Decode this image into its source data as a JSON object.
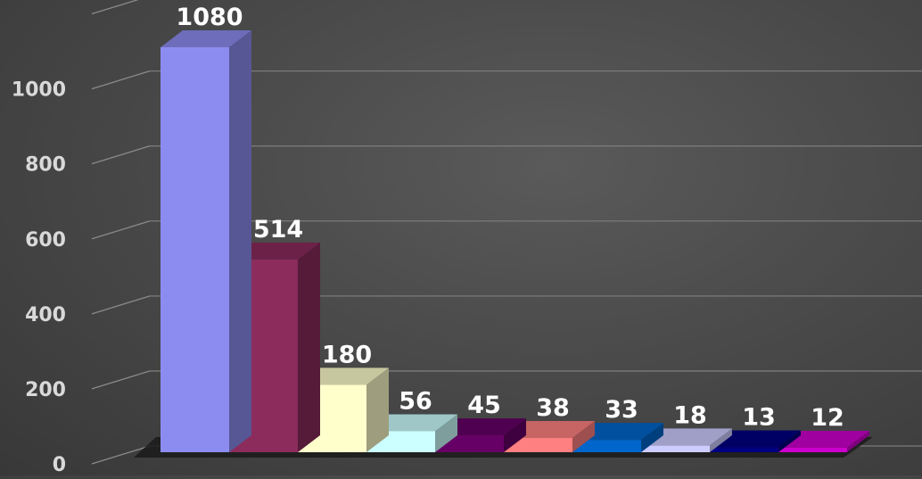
{
  "chart_data": {
    "type": "bar",
    "style": "3d-column",
    "title": "",
    "xlabel": "",
    "ylabel": "",
    "ylim": [
      0,
      1200
    ],
    "yticks": [
      0,
      200,
      400,
      600,
      800,
      1000
    ],
    "grid": true,
    "legend": "none",
    "values": [
      1080,
      514,
      180,
      56,
      45,
      38,
      33,
      18,
      13,
      12
    ],
    "colors": [
      "#8c8cf0",
      "#8b2c5c",
      "#ffffcc",
      "#ccffff",
      "#660066",
      "#ff8080",
      "#0066cc",
      "#ccccff",
      "#000080",
      "#cc00cc"
    ],
    "data_labels": [
      "1080",
      "514",
      "180",
      "56",
      "45",
      "38",
      "33",
      "18",
      "13",
      "12"
    ],
    "tick_labels": [
      "0",
      "200",
      "400",
      "600",
      "800",
      "1000"
    ]
  }
}
